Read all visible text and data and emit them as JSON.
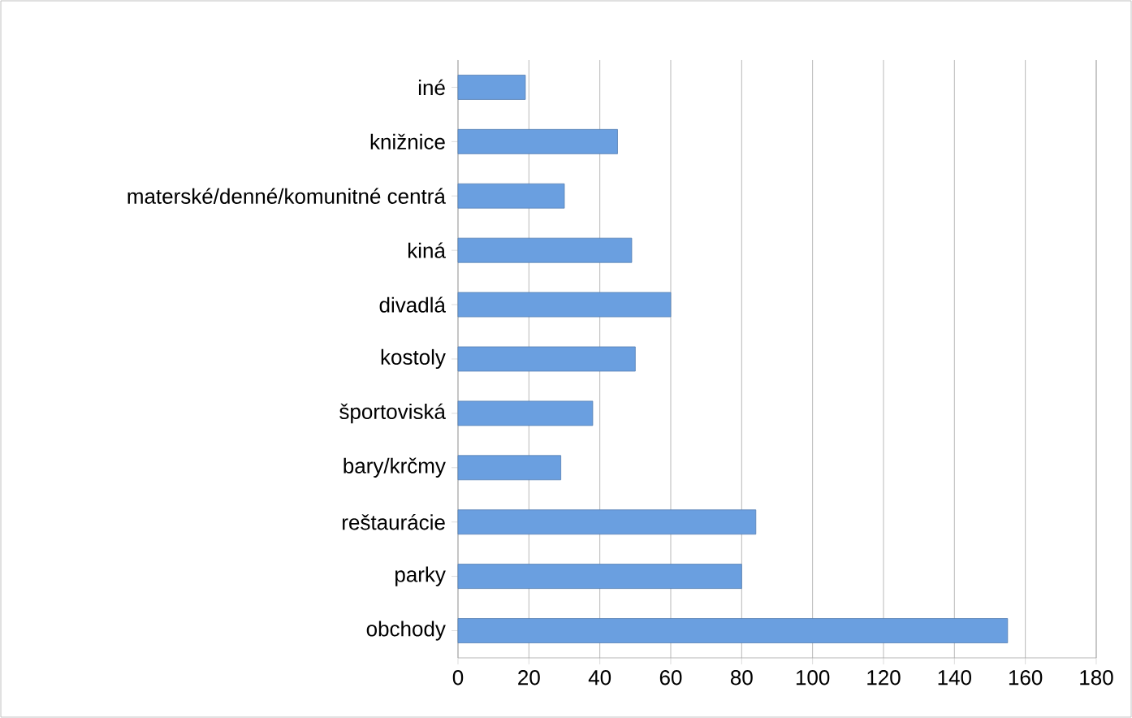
{
  "chart_data": {
    "type": "bar",
    "orientation": "horizontal",
    "categories": [
      "iné",
      "knižnice",
      "materské/denné/komunitné centrá",
      "kiná",
      "divadlá",
      "kostoly",
      "športoviská",
      "bary/krčmy",
      "reštaurácie",
      "parky",
      "obchody"
    ],
    "values": [
      19,
      45,
      30,
      49,
      60,
      50,
      38,
      29,
      84,
      80,
      155
    ],
    "color": "#6a9fe0",
    "xlim": [
      0,
      180
    ],
    "xticks": [
      0,
      20,
      40,
      60,
      80,
      100,
      120,
      140,
      160,
      180
    ],
    "grid": "x"
  }
}
